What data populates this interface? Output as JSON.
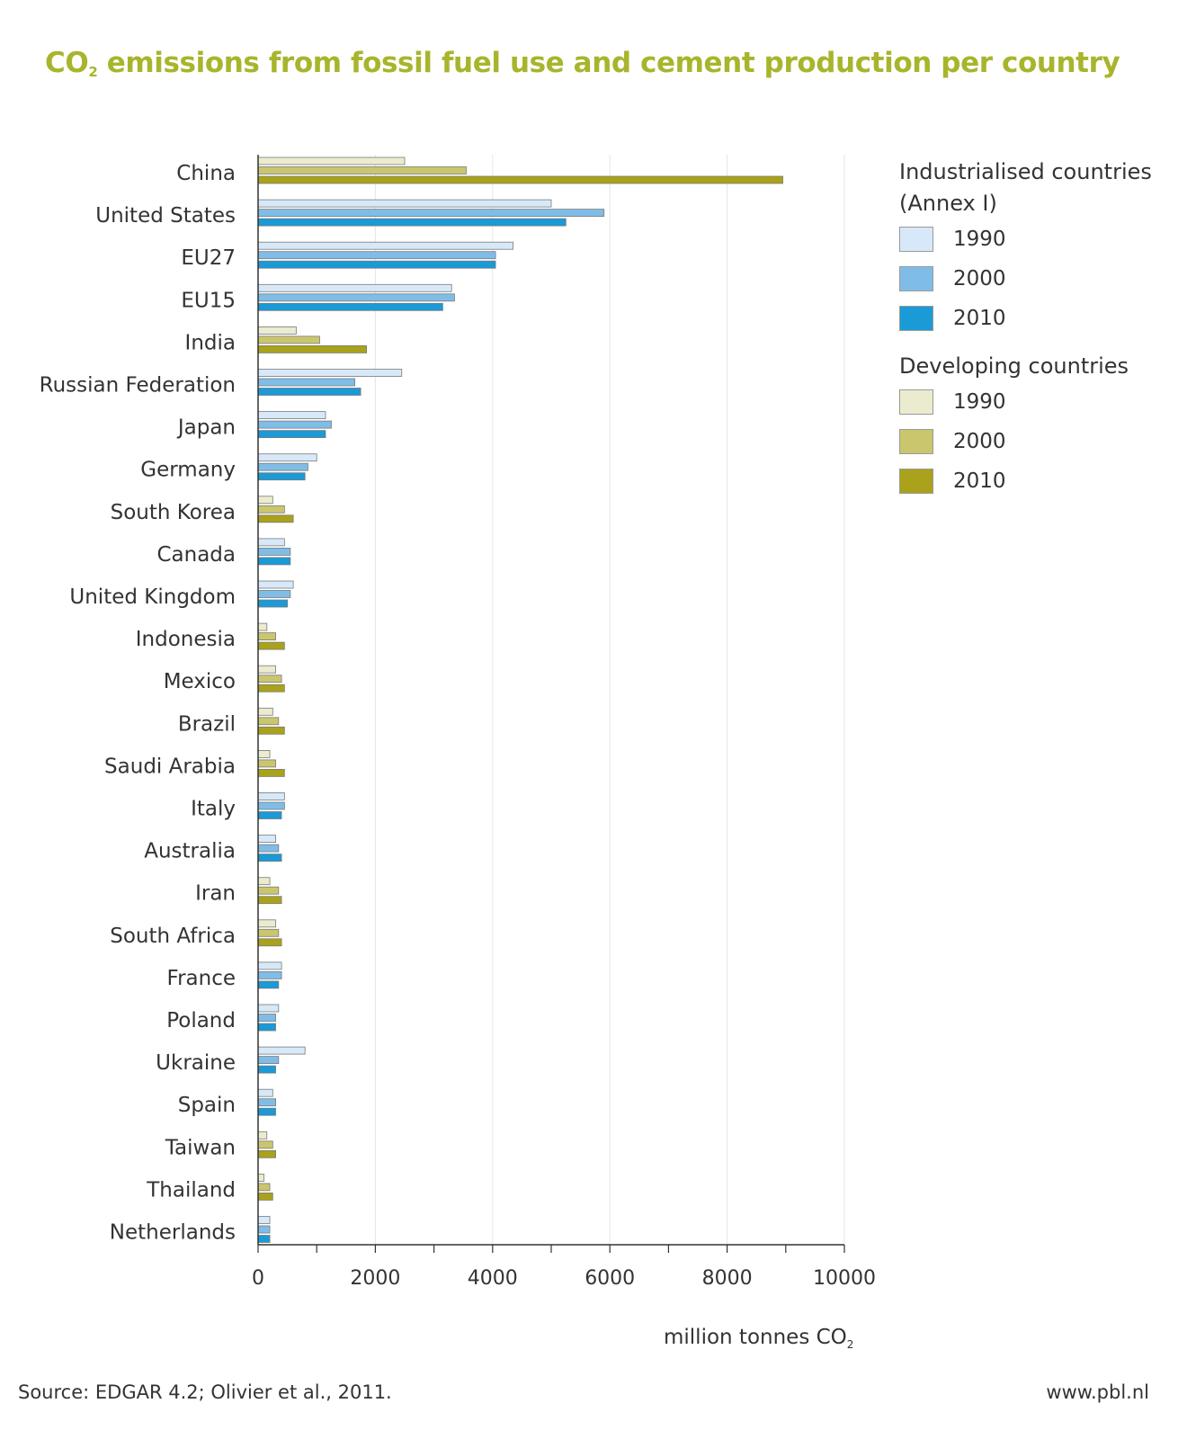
{
  "title_main": "CO",
  "title_sub": "2",
  "title_rest": " emissions from fossil fuel use and cement production per country",
  "unit_main": "million tonnes CO",
  "unit_sub": "2",
  "source": "Source: EDGAR 4.2; Olivier et al., 2011.",
  "website": "www.pbl.nl",
  "legend": {
    "industrialised_title_1": "Industrialised countries",
    "industrialised_title_2": "(Annex I)",
    "developing_title": "Developing countries",
    "years": [
      "1990",
      "2000",
      "2010"
    ]
  },
  "colors": {
    "industrialised": [
      "#d7e9f8",
      "#7fbde8",
      "#1a9ad6"
    ],
    "developing": [
      "#ebebcf",
      "#cac66e",
      "#a9a21a"
    ],
    "bar_border": "#7a7a7a",
    "title": "#a8b52c"
  },
  "chart_data": {
    "type": "bar",
    "orientation": "horizontal",
    "title": "CO2 emissions from fossil fuel use and cement production per country",
    "xlabel": "million tonnes CO2",
    "xlim": [
      0,
      10000
    ],
    "xticks": [
      0,
      2000,
      4000,
      6000,
      8000,
      10000
    ],
    "grid": true,
    "legend_position": "right",
    "series_names": [
      "1990",
      "2000",
      "2010"
    ],
    "categories": [
      {
        "name": "China",
        "group": "developing",
        "values": [
          2500,
          3550,
          8950
        ]
      },
      {
        "name": "United States",
        "group": "industrialised",
        "values": [
          5000,
          5900,
          5250
        ]
      },
      {
        "name": "EU27",
        "group": "industrialised",
        "values": [
          4350,
          4050,
          4050
        ]
      },
      {
        "name": "EU15",
        "group": "industrialised",
        "values": [
          3300,
          3350,
          3150
        ]
      },
      {
        "name": "India",
        "group": "developing",
        "values": [
          650,
          1050,
          1850
        ]
      },
      {
        "name": "Russian Federation",
        "group": "industrialised",
        "values": [
          2450,
          1650,
          1750
        ]
      },
      {
        "name": "Japan",
        "group": "industrialised",
        "values": [
          1150,
          1250,
          1150
        ]
      },
      {
        "name": "Germany",
        "group": "industrialised",
        "values": [
          1000,
          850,
          800
        ]
      },
      {
        "name": "South Korea",
        "group": "developing",
        "values": [
          250,
          450,
          600
        ]
      },
      {
        "name": "Canada",
        "group": "industrialised",
        "values": [
          450,
          550,
          550
        ]
      },
      {
        "name": "United Kingdom",
        "group": "industrialised",
        "values": [
          600,
          550,
          500
        ]
      },
      {
        "name": "Indonesia",
        "group": "developing",
        "values": [
          150,
          300,
          450
        ]
      },
      {
        "name": "Mexico",
        "group": "developing",
        "values": [
          300,
          400,
          450
        ]
      },
      {
        "name": "Brazil",
        "group": "developing",
        "values": [
          250,
          350,
          450
        ]
      },
      {
        "name": "Saudi Arabia",
        "group": "developing",
        "values": [
          200,
          300,
          450
        ]
      },
      {
        "name": "Italy",
        "group": "industrialised",
        "values": [
          450,
          450,
          400
        ]
      },
      {
        "name": "Australia",
        "group": "industrialised",
        "values": [
          300,
          350,
          400
        ]
      },
      {
        "name": "Iran",
        "group": "developing",
        "values": [
          200,
          350,
          400
        ]
      },
      {
        "name": "South Africa",
        "group": "developing",
        "values": [
          300,
          350,
          400
        ]
      },
      {
        "name": "France",
        "group": "industrialised",
        "values": [
          400,
          400,
          350
        ]
      },
      {
        "name": "Poland",
        "group": "industrialised",
        "values": [
          350,
          300,
          300
        ]
      },
      {
        "name": "Ukraine",
        "group": "industrialised",
        "values": [
          800,
          350,
          300
        ]
      },
      {
        "name": "Spain",
        "group": "industrialised",
        "values": [
          250,
          300,
          300
        ]
      },
      {
        "name": "Taiwan",
        "group": "developing",
        "values": [
          150,
          250,
          300
        ]
      },
      {
        "name": "Thailand",
        "group": "developing",
        "values": [
          100,
          200,
          250
        ]
      },
      {
        "name": "Netherlands",
        "group": "industrialised",
        "values": [
          200,
          200,
          200
        ]
      }
    ]
  }
}
